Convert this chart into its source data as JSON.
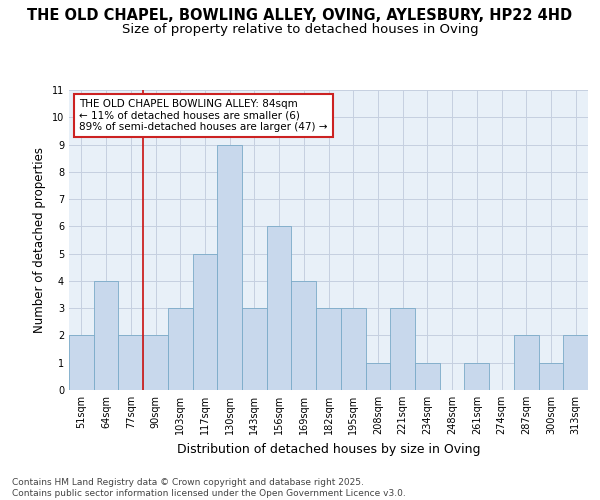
{
  "title": "THE OLD CHAPEL, BOWLING ALLEY, OVING, AYLESBURY, HP22 4HD",
  "subtitle": "Size of property relative to detached houses in Oving",
  "xlabel": "Distribution of detached houses by size in Oving",
  "ylabel": "Number of detached properties",
  "categories": [
    "51sqm",
    "64sqm",
    "77sqm",
    "90sqm",
    "103sqm",
    "117sqm",
    "130sqm",
    "143sqm",
    "156sqm",
    "169sqm",
    "182sqm",
    "195sqm",
    "208sqm",
    "221sqm",
    "234sqm",
    "248sqm",
    "261sqm",
    "274sqm",
    "287sqm",
    "300sqm",
    "313sqm"
  ],
  "values": [
    2,
    4,
    2,
    2,
    3,
    5,
    9,
    3,
    6,
    4,
    3,
    3,
    1,
    3,
    1,
    0,
    1,
    0,
    2,
    1,
    2
  ],
  "bar_color": "#c8d8ec",
  "bar_edge_color": "#7aaac8",
  "background_color": "#e8f0f8",
  "grid_color": "#c5cfe0",
  "vline_x_index": 3,
  "vline_color": "#cc2222",
  "ylim": [
    0,
    11
  ],
  "yticks": [
    0,
    1,
    2,
    3,
    4,
    5,
    6,
    7,
    8,
    9,
    10,
    11
  ],
  "annotation_text": "THE OLD CHAPEL BOWLING ALLEY: 84sqm\n← 11% of detached houses are smaller (6)\n89% of semi-detached houses are larger (47) →",
  "annotation_box_color": "#ffffff",
  "annotation_box_edge": "#cc2222",
  "footer_text": "Contains HM Land Registry data © Crown copyright and database right 2025.\nContains public sector information licensed under the Open Government Licence v3.0.",
  "title_fontsize": 10.5,
  "subtitle_fontsize": 9.5,
  "ylabel_fontsize": 8.5,
  "xlabel_fontsize": 9,
  "tick_fontsize": 7,
  "annotation_fontsize": 7.5,
  "footer_fontsize": 6.5
}
